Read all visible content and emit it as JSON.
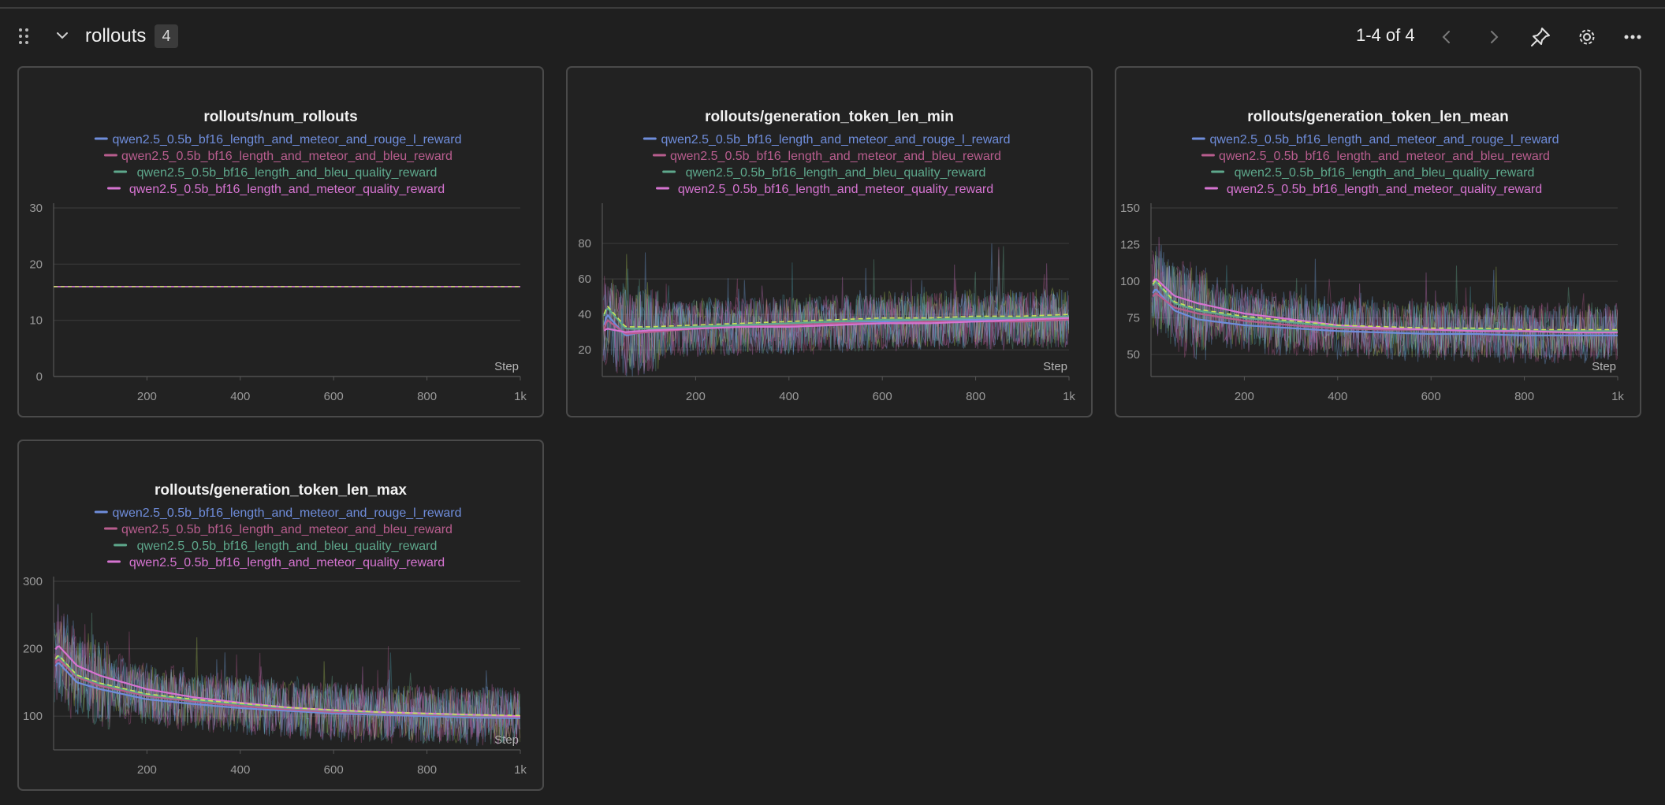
{
  "section": {
    "title": "rollouts",
    "count": "4",
    "pagination": "1-4 of 4"
  },
  "icons": {
    "drag": "drag-handle-icon",
    "collapse": "chevron-down-icon",
    "prev": "chevron-left-icon",
    "next": "chevron-right-icon",
    "pin": "pin-icon",
    "settings": "gear-icon",
    "more": "more-horizontal-icon"
  },
  "legend_series": [
    {
      "name": "qwen2.5_0.5b_bf16_length_and_meteor_and_rouge_l_reward",
      "color": "#6f8ddb"
    },
    {
      "name": "qwen2.5_0.5b_bf16_length_and_meteor_and_bleu_reward",
      "color": "#b85d8e"
    },
    {
      "name": "qwen2.5_0.5b_bf16_length_and_bleu_quality_reward",
      "color": "#5ea88c"
    },
    {
      "name": "qwen2.5_0.5b_bf16_length_and_meteor_quality_reward",
      "color": "#d674d1"
    }
  ],
  "chart_data": [
    {
      "type": "line",
      "title": "rollouts/num_rollouts",
      "xlabel": "Step",
      "x_ticks": [
        "200",
        "400",
        "600",
        "800",
        "1k"
      ],
      "y_ticks": [
        "0",
        "10",
        "20",
        "30"
      ],
      "xlim": [
        0,
        1000
      ],
      "ylim": [
        0,
        30
      ],
      "grid": true,
      "legend": "top-center",
      "series": [
        {
          "name": "qwen2.5_0.5b_bf16_length_and_meteor_and_rouge_l_reward",
          "x": [
            0,
            1000
          ],
          "y": [
            16,
            16
          ]
        },
        {
          "name": "qwen2.5_0.5b_bf16_length_and_meteor_and_bleu_reward",
          "x": [
            0,
            1000
          ],
          "y": [
            16,
            16
          ]
        },
        {
          "name": "qwen2.5_0.5b_bf16_length_and_bleu_quality_reward",
          "x": [
            0,
            1000
          ],
          "y": [
            16,
            16
          ]
        },
        {
          "name": "qwen2.5_0.5b_bf16_length_and_meteor_quality_reward",
          "x": [
            0,
            1000
          ],
          "y": [
            16,
            16
          ]
        }
      ]
    },
    {
      "type": "line",
      "title": "rollouts/generation_token_len_min",
      "xlabel": "Step",
      "x_ticks": [
        "200",
        "400",
        "600",
        "800",
        "1k"
      ],
      "y_ticks": [
        "20",
        "40",
        "60",
        "80"
      ],
      "xlim": [
        0,
        1000
      ],
      "ylim": [
        5,
        100
      ],
      "grid": true,
      "legend": "top-center",
      "series": [
        {
          "name": "qwen2.5_0.5b_bf16_length_and_meteor_and_rouge_l_reward",
          "x": [
            0,
            10,
            50,
            100,
            200,
            300,
            400,
            500,
            600,
            700,
            800,
            900,
            1000
          ],
          "y": [
            30,
            40,
            28,
            31,
            33,
            34,
            34,
            35,
            36,
            37,
            37,
            38,
            38
          ]
        },
        {
          "name": "qwen2.5_0.5b_bf16_length_and_meteor_and_bleu_reward",
          "x": [
            0,
            10,
            50,
            100,
            200,
            300,
            400,
            500,
            600,
            700,
            800,
            900,
            1000
          ],
          "y": [
            28,
            37,
            29,
            30,
            32,
            33,
            34,
            35,
            35,
            36,
            36,
            36,
            37
          ]
        },
        {
          "name": "qwen2.5_0.5b_bf16_length_and_bleu_quality_reward",
          "x": [
            0,
            10,
            50,
            100,
            200,
            300,
            400,
            500,
            600,
            700,
            800,
            900,
            1000
          ],
          "y": [
            36,
            44,
            32,
            32,
            33,
            34,
            35,
            36,
            37,
            37,
            38,
            38,
            39
          ]
        },
        {
          "name": "qwen2.5_0.5b_bf16_length_and_meteor_quality_reward",
          "x": [
            0,
            10,
            50,
            100,
            200,
            300,
            400,
            500,
            600,
            700,
            800,
            900,
            1000
          ],
          "y": [
            30,
            32,
            30,
            31,
            32,
            33,
            33,
            34,
            35,
            35,
            36,
            37,
            38
          ]
        }
      ]
    },
    {
      "type": "line",
      "title": "rollouts/generation_token_len_mean",
      "xlabel": "Step",
      "x_ticks": [
        "200",
        "400",
        "600",
        "800",
        "1k"
      ],
      "y_ticks": [
        "50",
        "75",
        "100",
        "125",
        "150"
      ],
      "xlim": [
        0,
        1000
      ],
      "ylim": [
        35,
        150
      ],
      "grid": true,
      "legend": "top-center",
      "series": [
        {
          "name": "qwen2.5_0.5b_bf16_length_and_meteor_and_rouge_l_reward",
          "x": [
            0,
            10,
            50,
            100,
            200,
            300,
            400,
            500,
            600,
            700,
            800,
            900,
            1000
          ],
          "y": [
            90,
            95,
            80,
            74,
            70,
            68,
            66,
            65,
            64,
            64,
            63,
            63,
            63
          ]
        },
        {
          "name": "qwen2.5_0.5b_bf16_length_and_meteor_and_bleu_reward",
          "x": [
            0,
            10,
            50,
            100,
            200,
            300,
            400,
            500,
            600,
            700,
            800,
            900,
            1000
          ],
          "y": [
            88,
            92,
            82,
            78,
            73,
            70,
            68,
            67,
            67,
            66,
            66,
            66,
            66
          ]
        },
        {
          "name": "qwen2.5_0.5b_bf16_length_and_bleu_quality_reward",
          "x": [
            0,
            10,
            50,
            100,
            200,
            300,
            400,
            500,
            600,
            700,
            800,
            900,
            1000
          ],
          "y": [
            95,
            100,
            85,
            80,
            75,
            72,
            69,
            68,
            67,
            67,
            66,
            66,
            66
          ]
        },
        {
          "name": "qwen2.5_0.5b_bf16_length_and_meteor_quality_reward",
          "x": [
            0,
            10,
            50,
            100,
            200,
            300,
            400,
            500,
            600,
            700,
            800,
            900,
            1000
          ],
          "y": [
            98,
            102,
            90,
            85,
            78,
            74,
            70,
            68,
            67,
            66,
            66,
            65,
            65
          ]
        }
      ]
    },
    {
      "type": "line",
      "title": "rollouts/generation_token_len_max",
      "xlabel": "Step",
      "x_ticks": [
        "200",
        "400",
        "600",
        "800",
        "1k"
      ],
      "y_ticks": [
        "100",
        "200",
        "300"
      ],
      "xlim": [
        0,
        1000
      ],
      "ylim": [
        50,
        300
      ],
      "grid": true,
      "legend": "top-center",
      "series": [
        {
          "name": "qwen2.5_0.5b_bf16_length_and_meteor_and_rouge_l_reward",
          "x": [
            0,
            10,
            50,
            100,
            200,
            300,
            400,
            500,
            600,
            700,
            800,
            900,
            1000
          ],
          "y": [
            170,
            180,
            150,
            140,
            125,
            118,
            112,
            108,
            104,
            102,
            100,
            98,
            97
          ]
        },
        {
          "name": "qwen2.5_0.5b_bf16_length_and_meteor_and_bleu_reward",
          "x": [
            0,
            10,
            50,
            100,
            200,
            300,
            400,
            500,
            600,
            700,
            800,
            900,
            1000
          ],
          "y": [
            175,
            185,
            158,
            145,
            130,
            122,
            115,
            110,
            106,
            104,
            102,
            100,
            99
          ]
        },
        {
          "name": "qwen2.5_0.5b_bf16_length_and_bleu_quality_reward",
          "x": [
            0,
            10,
            50,
            100,
            200,
            300,
            400,
            500,
            600,
            700,
            800,
            900,
            1000
          ],
          "y": [
            180,
            190,
            160,
            148,
            132,
            124,
            118,
            112,
            108,
            105,
            103,
            101,
            100
          ]
        },
        {
          "name": "qwen2.5_0.5b_bf16_length_and_meteor_quality_reward",
          "x": [
            0,
            10,
            50,
            100,
            200,
            300,
            400,
            500,
            600,
            700,
            800,
            900,
            1000
          ],
          "y": [
            195,
            205,
            175,
            160,
            140,
            128,
            120,
            113,
            109,
            106,
            104,
            102,
            100
          ]
        }
      ]
    }
  ]
}
